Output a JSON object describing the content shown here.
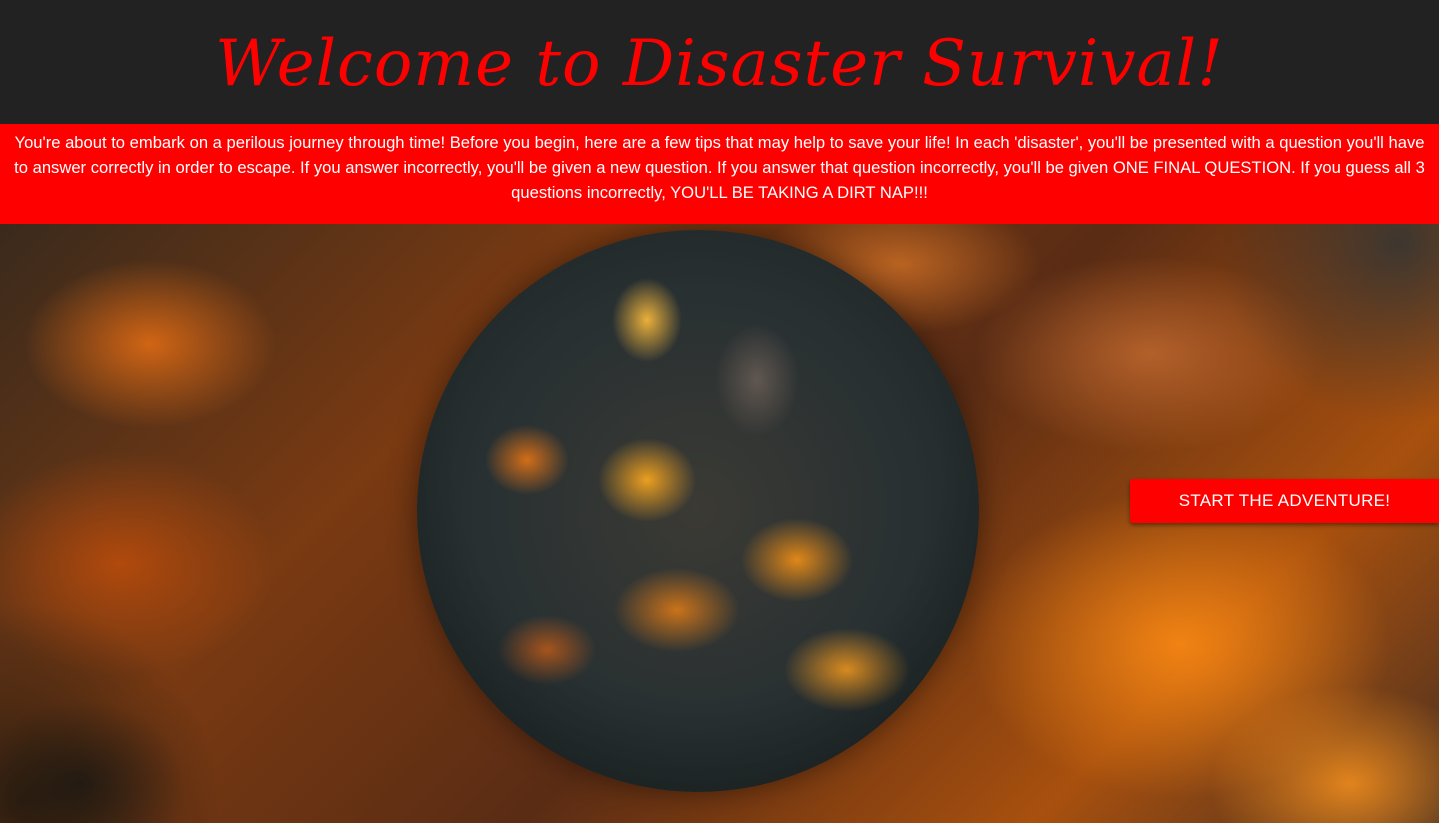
{
  "header": {
    "title": "Welcome to Disaster Survival!"
  },
  "intro": {
    "text": "You're about to embark on a perilous journey through time! Before you begin, here are a few tips that may help to save your life! In each 'disaster', you'll be presented with a question you'll have to answer correctly in order to escape. If you answer incorrectly, you'll be given a new question. If you answer that question incorrectly, you'll be given ONE FINAL QUESTION. If you guess all 3 questions incorrectly, YOU'LL BE TAKING A DIRT NAP!!!"
  },
  "hero": {
    "start_button_label": "START THE ADVENTURE!"
  },
  "colors": {
    "accent": "#ff0000",
    "header_bg": "#222222",
    "text_light": "#ffffff"
  }
}
